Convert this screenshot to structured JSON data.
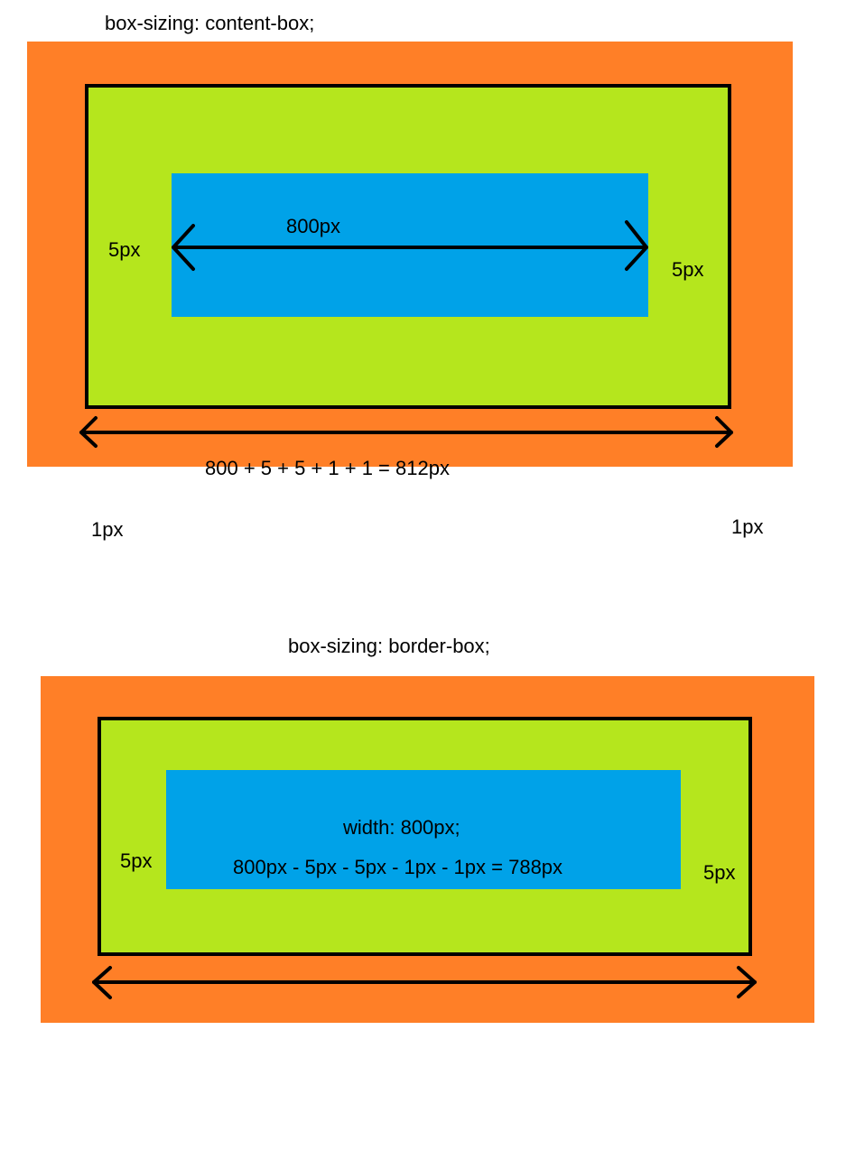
{
  "colors": {
    "outer": "#ff7f27",
    "border_box": "#b5e61d",
    "content": "#00a2e8",
    "border": "#000000"
  },
  "top_diagram": {
    "title": "box-sizing: content-box;",
    "content_width_label": "800px",
    "padding_left_label": "5px",
    "padding_right_label": "5px",
    "total_formula": "800 + 5 + 5 + 1 + 1 = 812px",
    "border_left_label": "1px",
    "border_right_label": "1px"
  },
  "bottom_diagram": {
    "title": "box-sizing: border-box;",
    "width_label": "width: 800px;",
    "content_formula": "800px - 5px - 5px - 1px - 1px = 788px",
    "padding_left_label": "5px",
    "padding_right_label": "5px"
  }
}
